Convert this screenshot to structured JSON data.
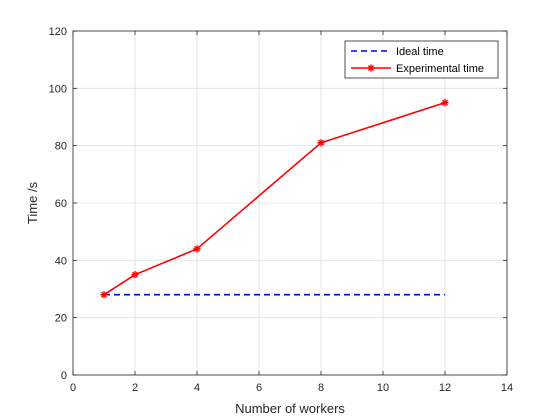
{
  "chart_data": {
    "type": "line",
    "title": "",
    "xlabel": "Number of workers",
    "ylabel": "Time /s",
    "xlim": [
      0,
      14
    ],
    "ylim": [
      0,
      120
    ],
    "xticks": [
      0,
      2,
      4,
      6,
      8,
      10,
      12,
      14
    ],
    "yticks": [
      0,
      20,
      40,
      60,
      80,
      100,
      120
    ],
    "grid": true,
    "legend_position": "top-right",
    "series": [
      {
        "name": "Ideal time",
        "style": "dashed",
        "marker": "none",
        "color": "#0000ff",
        "x": [
          1,
          12
        ],
        "y": [
          28,
          28
        ]
      },
      {
        "name": "Experimental time",
        "style": "solid",
        "marker": "asterisk",
        "color": "#ff0000",
        "x": [
          1,
          2,
          4,
          8,
          12
        ],
        "y": [
          28,
          35,
          44,
          81,
          95
        ]
      }
    ]
  }
}
